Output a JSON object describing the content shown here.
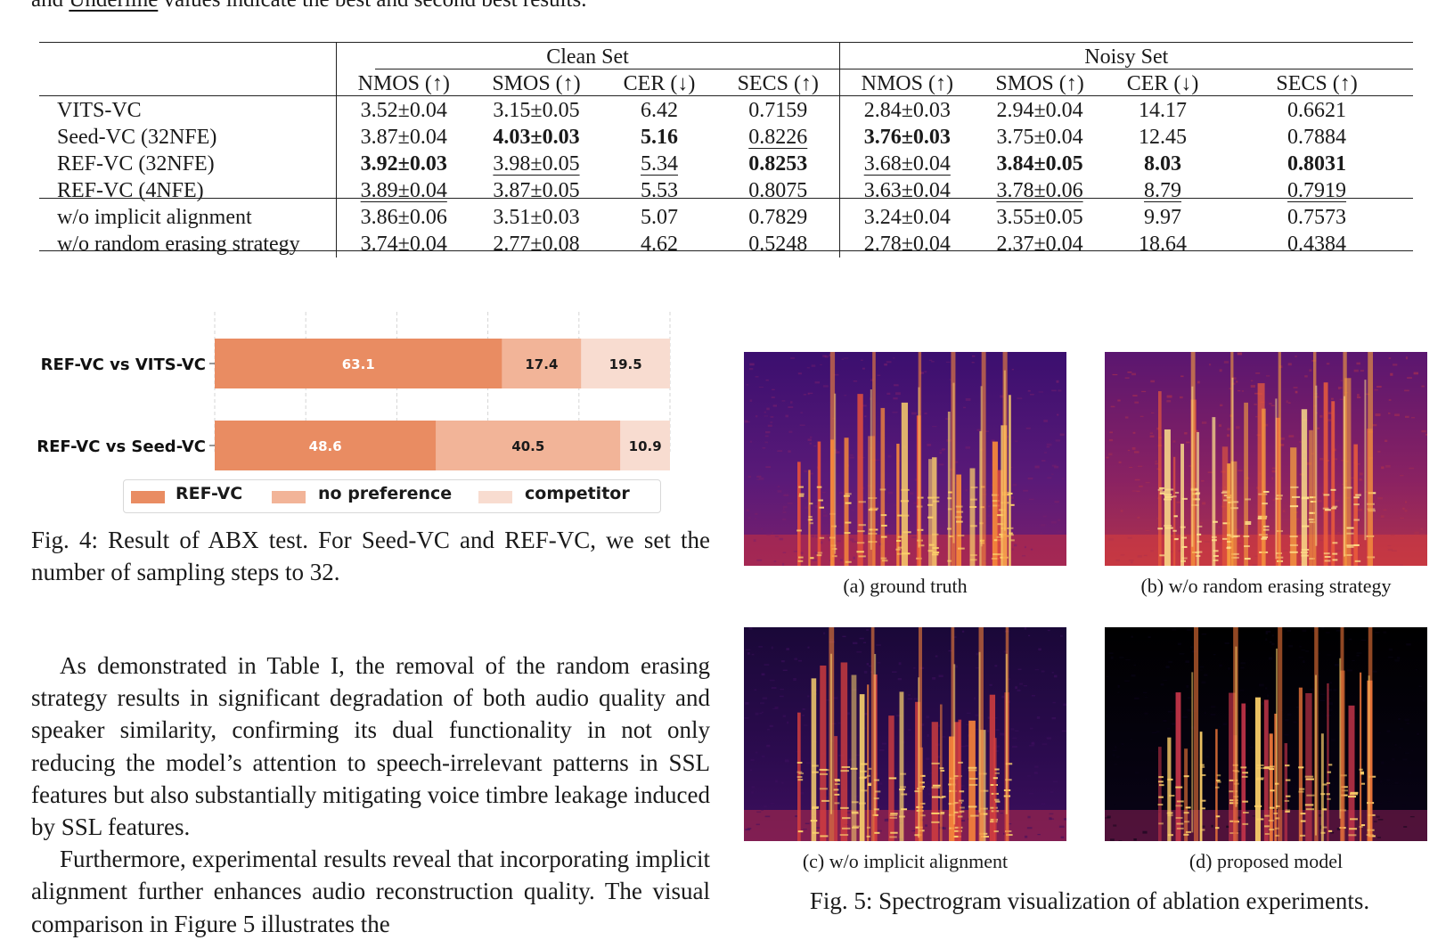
{
  "top_caption": {
    "pre": "and ",
    "underline": "Underline",
    "post": " values indicate the best and second best results."
  },
  "table": {
    "groups": [
      "Clean Set",
      "Noisy Set"
    ],
    "columns": [
      "NMOS (↑)",
      "SMOS (↑)",
      "CER (↓)",
      "SECS (↑)",
      "NMOS (↑)",
      "SMOS (↑)",
      "CER (↓)",
      "SECS (↑)"
    ],
    "rows": [
      {
        "name": "VITS-VC",
        "cells": [
          {
            "v": "3.52±0.04"
          },
          {
            "v": "3.15±0.05"
          },
          {
            "v": "6.42"
          },
          {
            "v": "0.7159"
          },
          {
            "v": "2.84±0.03"
          },
          {
            "v": "2.94±0.04"
          },
          {
            "v": "14.17"
          },
          {
            "v": "0.6621"
          }
        ]
      },
      {
        "name": "Seed-VC (32NFE)",
        "cells": [
          {
            "v": "3.87±0.04"
          },
          {
            "v": "4.03±0.03",
            "s": "b"
          },
          {
            "v": "5.16",
            "s": "b"
          },
          {
            "v": "0.8226",
            "s": "u"
          },
          {
            "v": "3.76±0.03",
            "s": "b"
          },
          {
            "v": "3.75±0.04"
          },
          {
            "v": "12.45"
          },
          {
            "v": "0.7884"
          }
        ]
      },
      {
        "name": "REF-VC (32NFE)",
        "cells": [
          {
            "v": "3.92±0.03",
            "s": "b"
          },
          {
            "v": "3.98±0.05",
            "s": "u"
          },
          {
            "v": "5.34",
            "s": "u"
          },
          {
            "v": "0.8253",
            "s": "b"
          },
          {
            "v": "3.68±0.04",
            "s": "u"
          },
          {
            "v": "3.84±0.05",
            "s": "b"
          },
          {
            "v": "8.03",
            "s": "b"
          },
          {
            "v": "0.8031",
            "s": "b"
          }
        ]
      },
      {
        "name": "REF-VC (4NFE)",
        "cells": [
          {
            "v": "3.89±0.04",
            "s": "u"
          },
          {
            "v": "3.87±0.05"
          },
          {
            "v": "5.53"
          },
          {
            "v": "0.8075"
          },
          {
            "v": "3.63±0.04"
          },
          {
            "v": "3.78±0.06",
            "s": "u"
          },
          {
            "v": "8.79",
            "s": "u"
          },
          {
            "v": "0.7919",
            "s": "u"
          }
        ]
      },
      {
        "name": "w/o implicit alignment",
        "cells": [
          {
            "v": "3.86±0.06"
          },
          {
            "v": "3.51±0.03"
          },
          {
            "v": "5.07"
          },
          {
            "v": "0.7829"
          },
          {
            "v": "3.24±0.04"
          },
          {
            "v": "3.55±0.05"
          },
          {
            "v": "9.97"
          },
          {
            "v": "0.7573"
          }
        ]
      },
      {
        "name": "w/o random erasing strategy",
        "cells": [
          {
            "v": "3.74±0.04"
          },
          {
            "v": "2.77±0.08"
          },
          {
            "v": "4.62"
          },
          {
            "v": "0.5248"
          },
          {
            "v": "2.78±0.04"
          },
          {
            "v": "2.37±0.04"
          },
          {
            "v": "18.64"
          },
          {
            "v": "0.4384"
          }
        ]
      }
    ]
  },
  "chart_data": {
    "type": "bar",
    "orientation": "horizontal",
    "stacked": true,
    "categories": [
      "REF-VC vs VITS-VC",
      "REF-VC vs Seed-VC"
    ],
    "series": [
      {
        "name": "REF-VC",
        "values": [
          63.1,
          48.6
        ],
        "color": "#e98c62"
      },
      {
        "name": "no preference",
        "values": [
          17.4,
          40.5
        ],
        "color": "#f2b498"
      },
      {
        "name": "competitor",
        "values": [
          19.5,
          10.9
        ],
        "color": "#f8dcd0"
      }
    ],
    "xlim": [
      0,
      100
    ],
    "grid": true,
    "legend_position": "bottom",
    "title": "",
    "xlabel": "",
    "ylabel": ""
  },
  "fig4_caption": "Fig. 4: Result of ABX test. For Seed-VC and REF-VC, we set the number of sampling steps to 32.",
  "body": [
    "As demonstrated in Table I, the removal of the random erasing strategy results in significant degradation of both audio quality and speaker similarity, confirming its dual functionality in not only reducing the model’s attention to speech-irrelevant patterns in SSL features but also substantially mitigating voice timbre leakage induced by SSL features.",
    "Furthermore, experimental results reveal that incorporat­ing implicit alignment further enhances audio reconstruction quality. The visual comparison in Figure 5 illustrates the"
  ],
  "spectrograms": [
    {
      "label": "(a) ground truth",
      "theme": "purple"
    },
    {
      "label": "(b) w/o random erasing strategy",
      "theme": "noisy"
    },
    {
      "label": "(c) w/o implicit alignment",
      "theme": "dark"
    },
    {
      "label": "(d) proposed model",
      "theme": "black"
    }
  ],
  "fig5_caption": "Fig. 5: Spectrogram visualization of ablation experiments."
}
